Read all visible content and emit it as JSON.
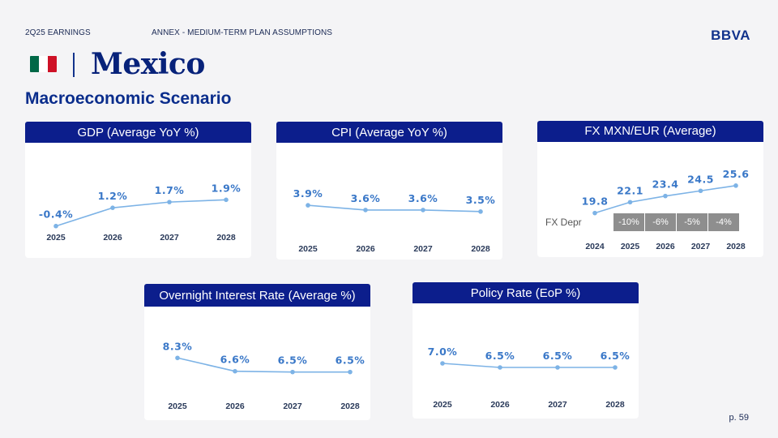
{
  "header": {
    "left_label": "2Q25 EARNINGS",
    "section_label": "ANNEX - MEDIUM-TERM PLAN ASSUMPTIONS",
    "brand": "BBVA"
  },
  "page_title": "Mexico",
  "subtitle": "Macroeconomic Scenario",
  "flag_colors": [
    "#006847",
    "#ffffff",
    "#ce1126"
  ],
  "colors": {
    "accent": "#0c1e8c",
    "series": "#7db3e6",
    "label": "#3a78c8"
  },
  "charts": [
    {
      "id": "gdp",
      "title": "GDP (Average YoY %)",
      "chart_data": {
        "type": "line",
        "categories": [
          "2025",
          "2026",
          "2027",
          "2028"
        ],
        "values": [
          -0.4,
          1.2,
          1.7,
          1.9
        ],
        "labels": [
          "-0.4%",
          "1.2%",
          "1.7%",
          "1.9%"
        ],
        "ylim": [
          -1.2,
          3.2
        ]
      }
    },
    {
      "id": "cpi",
      "title": "CPI (Average YoY %)",
      "chart_data": {
        "type": "line",
        "categories": [
          "2025",
          "2026",
          "2027",
          "2028"
        ],
        "values": [
          3.9,
          3.6,
          3.6,
          3.5
        ],
        "labels": [
          "3.9%",
          "3.6%",
          "3.6%",
          "3.5%"
        ],
        "ylim": [
          2,
          5.5
        ]
      }
    },
    {
      "id": "fx",
      "title": "FX MXN/EUR (Average)",
      "chart_data": {
        "type": "line",
        "categories": [
          "2024",
          "2025",
          "2026",
          "2027",
          "2028"
        ],
        "values": [
          19.8,
          22.1,
          23.4,
          24.5,
          25.6
        ],
        "labels": [
          "19.8",
          "22.1",
          "23.4",
          "24.5",
          "25.6"
        ],
        "ylim": [
          17,
          29
        ]
      },
      "fx_depr": {
        "label": "FX Depr",
        "values": [
          "-10%",
          "-6%",
          "-5%",
          "-4%"
        ]
      }
    },
    {
      "id": "overnight",
      "title": "Overnight Interest Rate (Average %)",
      "chart_data": {
        "type": "line",
        "categories": [
          "2025",
          "2026",
          "2027",
          "2028"
        ],
        "values": [
          8.3,
          6.6,
          6.5,
          6.5
        ],
        "labels": [
          "8.3%",
          "6.6%",
          "6.5%",
          "6.5%"
        ],
        "ylim": [
          4.5,
          10.5
        ]
      }
    },
    {
      "id": "policy",
      "title": "Policy Rate (EoP %)",
      "chart_data": {
        "type": "line",
        "categories": [
          "2025",
          "2026",
          "2027",
          "2028"
        ],
        "values": [
          7.0,
          6.5,
          6.5,
          6.5
        ],
        "labels": [
          "7.0%",
          "6.5%",
          "6.5%",
          "6.5%"
        ],
        "ylim": [
          4,
          10
        ]
      }
    }
  ],
  "page_number": "p. 59"
}
